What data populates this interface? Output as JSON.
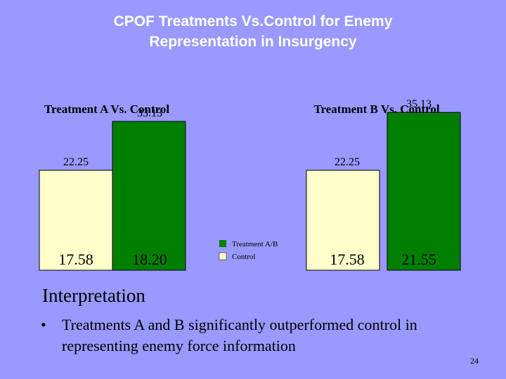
{
  "title_line1": "CPOF Treatments Vs.Control for Enemy",
  "title_line2": "Representation in Insurgency",
  "colors": {
    "background": "#9999ff",
    "treatment": "#007f00",
    "control": "#ffffcc",
    "title": "#ffffff"
  },
  "chart_data": [
    {
      "type": "bar",
      "title": "Treatment A Vs. Control",
      "categories": [
        "Control",
        "Treatment A/B"
      ],
      "series": [
        {
          "name": "Control",
          "value": 22.25,
          "label": "17.58",
          "top_label": "22.25",
          "color": "#ffffcc"
        },
        {
          "name": "Treatment A/B",
          "value": 33.13,
          "label": "18.20",
          "top_label": "33.13",
          "color": "#007f00"
        }
      ]
    },
    {
      "type": "bar",
      "title": "Treatment B Vs. Control",
      "categories": [
        "Control",
        "Treatment A/B"
      ],
      "series": [
        {
          "name": "Control",
          "value": 22.25,
          "label": "17.58",
          "top_label": "22.25",
          "color": "#ffffcc"
        },
        {
          "name": "Treatment A/B",
          "value": 35.13,
          "label": "21.55",
          "top_label": "35.13",
          "color": "#007f00"
        }
      ]
    }
  ],
  "legend": [
    {
      "label": "Treatment A/B",
      "color": "#007f00"
    },
    {
      "label": "Control",
      "color": "#ffffcc"
    }
  ],
  "interpretation_heading": "Interpretation",
  "bullet_symbol": "•",
  "bullet_text": "Treatments A and B significantly outperformed control in representing enemy force information",
  "page_number": "24"
}
